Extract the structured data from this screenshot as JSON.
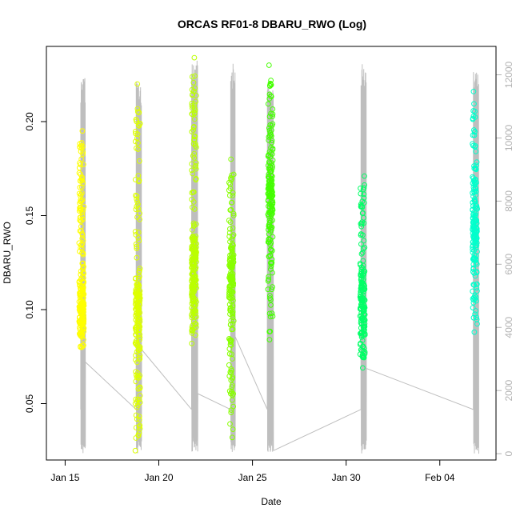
{
  "chart_data": {
    "type": "scatter",
    "title": "ORCAS RF01-8 DBARU_RWO (Log)",
    "xlabel": "Date",
    "ylabel": "DBARU_RWO",
    "y2label": "",
    "xlim": [
      "2016-01-14",
      "2016-02-07"
    ],
    "ylim": [
      0.02,
      0.24
    ],
    "y2lim": [
      -200,
      12900
    ],
    "x_ticks": [
      {
        "date": "2016-01-15",
        "label": "Jan 15"
      },
      {
        "date": "2016-01-20",
        "label": "Jan 20"
      },
      {
        "date": "2016-01-25",
        "label": "Jan 25"
      },
      {
        "date": "2016-01-30",
        "label": "Jan 30"
      },
      {
        "date": "2016-02-04",
        "label": "Feb 04"
      }
    ],
    "y_ticks": [
      {
        "value": 0.05,
        "label": "0.05"
      },
      {
        "value": 0.1,
        "label": "0.10"
      },
      {
        "value": 0.15,
        "label": "0.15"
      },
      {
        "value": 0.2,
        "label": "0.20"
      }
    ],
    "y2_ticks": [
      {
        "value": 0,
        "label": "0"
      },
      {
        "value": 2000,
        "label": "2000"
      },
      {
        "value": 4000,
        "label": "4000"
      },
      {
        "value": 6000,
        "label": "6000"
      },
      {
        "value": 8000,
        "label": "8000"
      },
      {
        "value": 10000,
        "label": "10000"
      },
      {
        "value": 12000,
        "label": "12000"
      }
    ],
    "grid": false,
    "legend": "none",
    "flights": [
      {
        "date": "2016-01-15",
        "time": "21:00",
        "color": "#ffff00",
        "y_min": 0.08,
        "y_max": 0.195,
        "y_center": 0.1,
        "points": 220
      },
      {
        "date": "2016-01-18",
        "time": "21:00",
        "color": "#ddff00",
        "y_min": 0.025,
        "y_max": 0.22,
        "y_center": 0.1,
        "points": 200
      },
      {
        "date": "2016-01-21",
        "time": "21:00",
        "color": "#bbff00",
        "y_min": 0.082,
        "y_max": 0.234,
        "y_center": 0.12,
        "points": 230
      },
      {
        "date": "2016-01-23",
        "time": "21:00",
        "color": "#88ff00",
        "y_min": 0.032,
        "y_max": 0.18,
        "y_center": 0.12,
        "points": 180
      },
      {
        "date": "2016-01-25",
        "time": "23:00",
        "color": "#44ff00",
        "y_min": 0.084,
        "y_max": 0.23,
        "y_center": 0.16,
        "points": 190
      },
      {
        "date": "2016-01-30",
        "time": "21:00",
        "color": "#00ff66",
        "y_min": 0.069,
        "y_max": 0.171,
        "y_center": 0.1,
        "points": 170
      },
      {
        "date": "2016-02-05",
        "time": "21:00",
        "color": "#00ffcc",
        "y_min": 0.088,
        "y_max": 0.216,
        "y_center": 0.14,
        "points": 180
      }
    ],
    "altitude_series": {
      "color": "#bebebe",
      "flights": [
        {
          "start": "2016-01-15 20:00",
          "end": "2016-01-16 02:00",
          "peak": 12000,
          "low": 0,
          "end_alt": 2900
        },
        {
          "start": "2016-01-18 19:00",
          "end": "2016-01-19 02:00",
          "peak": 11900,
          "low": 0,
          "end_alt": 3300
        },
        {
          "start": "2016-01-21 18:00",
          "end": "2016-01-22 02:00",
          "peak": 12500,
          "low": 0,
          "end_alt": 1900
        },
        {
          "start": "2016-01-23 20:00",
          "end": "2016-01-24 02:00",
          "peak": 12400,
          "low": 0,
          "end_alt": 3700
        },
        {
          "start": "2016-01-25 19:00",
          "end": "2016-01-26 03:00",
          "peak": 12000,
          "low": 0,
          "end_alt": 100
        },
        {
          "start": "2016-01-30 19:00",
          "end": "2016-01-31 02:00",
          "peak": 12400,
          "low": 0,
          "end_alt": 2700
        },
        {
          "start": "2016-02-05 19:00",
          "end": "2016-02-06 02:00",
          "peak": 12100,
          "low": 0,
          "end_alt": 0
        }
      ]
    }
  }
}
